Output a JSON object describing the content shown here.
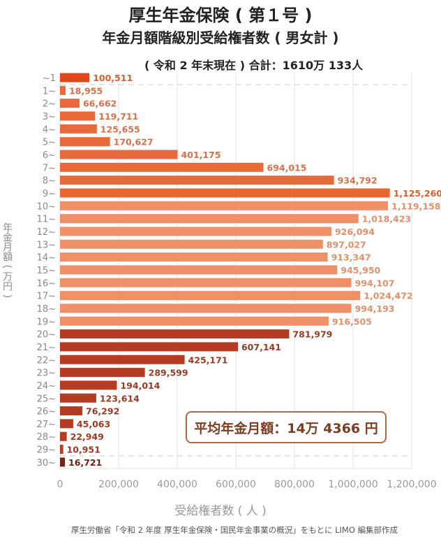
{
  "title": "厚生年金保険 ( 第１号 )",
  "subtitle": "年金月額階級別受給権者数 ( 男女計 )",
  "note": "( 令和 2 年末現在 ) 合計：1610万 133人",
  "average_label": "平均年金月額：14万 4366 円",
  "source": "厚生労働省「令和 2 年度 厚生年金保険・国民年金事業の概況」をもとに LIMO 編集部作成",
  "chart_data": {
    "type": "bar",
    "orientation": "horizontal",
    "xlabel": "受給権者数 ( 人 )",
    "ylabel": "年金月額 ( 万円 )",
    "xlim": [
      0,
      1200000
    ],
    "xticks": [
      "0",
      "200,000",
      "400,000",
      "600,000",
      "800,000",
      "1,000,000",
      "1,200,000"
    ],
    "grid": true,
    "categories": [
      "~1",
      "1~",
      "2~",
      "3~",
      "4~",
      "5~",
      "6~",
      "7~",
      "8~",
      "9~",
      "10~",
      "11~",
      "12~",
      "13~",
      "14~",
      "15~",
      "16~",
      "17~",
      "18~",
      "19~",
      "20~",
      "21~",
      "22~",
      "23~",
      "24~",
      "25~",
      "26~",
      "27~",
      "28~",
      "29~",
      "30~"
    ],
    "values": [
      100511,
      18955,
      66662,
      119711,
      125655,
      170627,
      401175,
      694015,
      934792,
      1125260,
      1119158,
      1018423,
      926094,
      897027,
      913347,
      945950,
      994107,
      1024472,
      994193,
      916505,
      781979,
      607141,
      425171,
      289599,
      194014,
      123614,
      76292,
      45063,
      22949,
      10951,
      16721
    ],
    "value_labels": [
      "100,511",
      "18,955",
      "66,662",
      "119,711",
      "125,655",
      "170,627",
      "401,175",
      "694,015",
      "934,792",
      "1,125,260",
      "1,119,158",
      "1,018,423",
      "926,094",
      "897,027",
      "913,347",
      "945,950",
      "994,107",
      "1,024,472",
      "994,193",
      "916,505",
      "781,979",
      "607,141",
      "425,171",
      "289,599",
      "194,014",
      "123,614",
      "76,292",
      "45,063",
      "22,949",
      "10,951",
      "16,721"
    ],
    "colors": {
      "first": "#e0481c",
      "low": "#e8693a",
      "peak": "#e8672f",
      "mid": "#f09068",
      "high": "#b53c22",
      "top": "#74251a"
    },
    "label_colors": {
      "first": "#d0602e",
      "low": "#d8704a",
      "peak": "#d8602e",
      "mid": "#e0906a",
      "high": "#9a3a22",
      "top": "#6a2418"
    }
  }
}
